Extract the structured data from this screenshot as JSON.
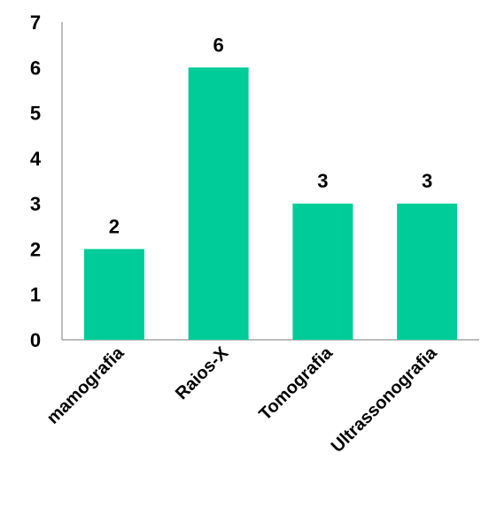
{
  "chart_data": {
    "type": "bar",
    "categories": [
      "mamografia",
      "Raios-X",
      "Tomografia",
      "Ultrassonografia"
    ],
    "values": [
      2,
      6,
      3,
      3
    ],
    "data_labels": [
      "2",
      "6",
      "3",
      "3"
    ],
    "title": "",
    "xlabel": "",
    "ylabel": "",
    "ylim": [
      0,
      7
    ],
    "yticks": [
      "0",
      "1",
      "2",
      "3",
      "4",
      "5",
      "6",
      "7"
    ],
    "grid": false,
    "legend": "none",
    "bar_color": "#00CC99",
    "axis_color": "#A6A6A6"
  }
}
